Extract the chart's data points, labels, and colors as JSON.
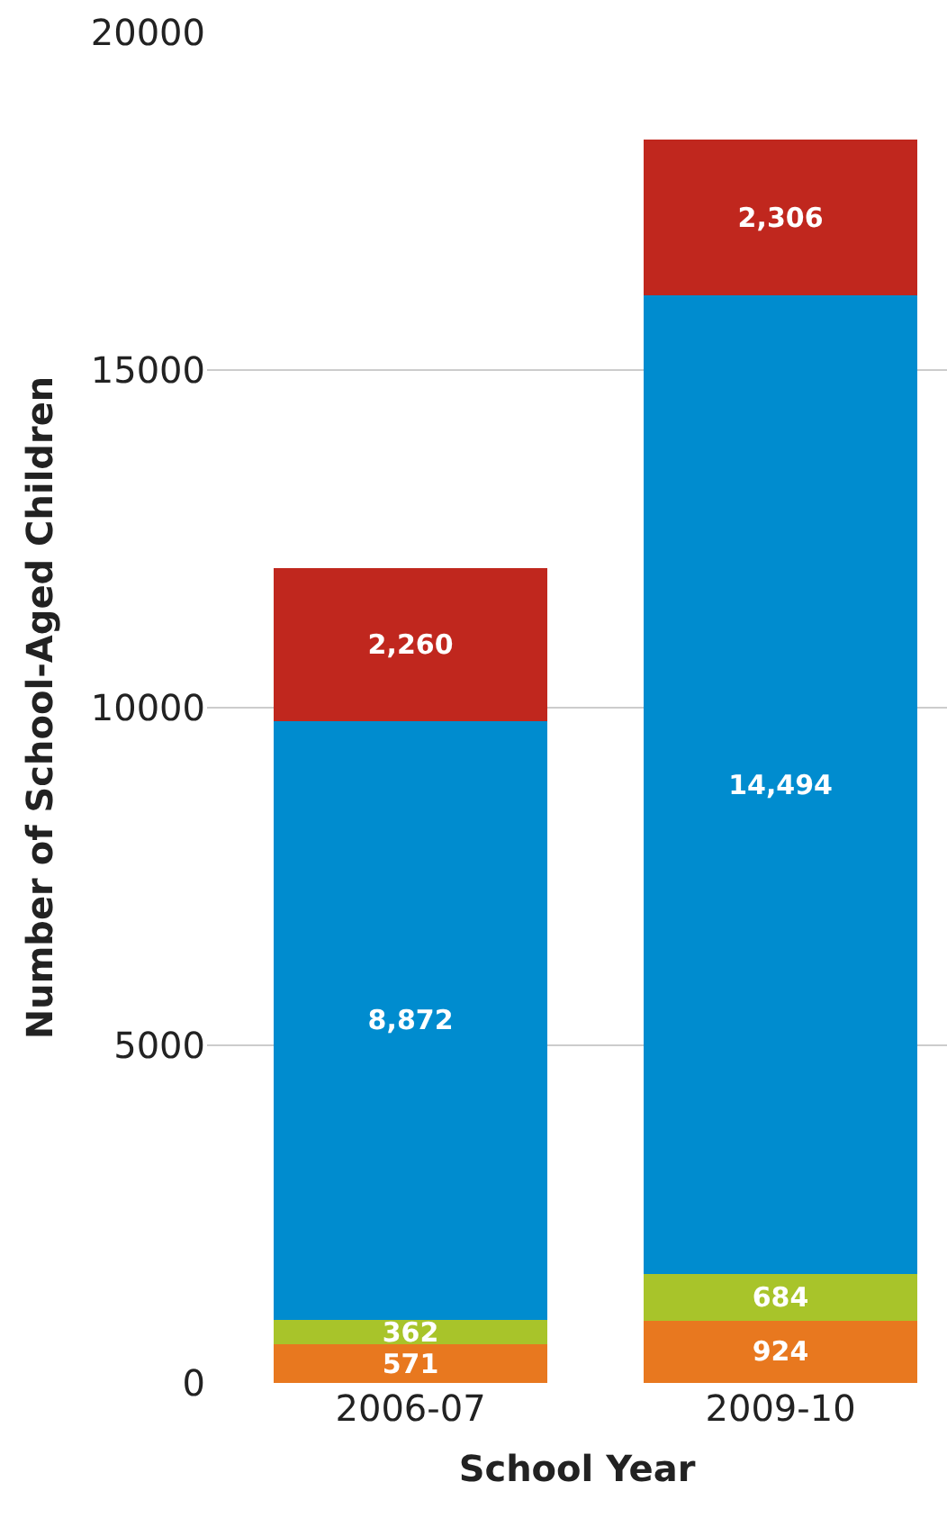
{
  "chart_data": {
    "type": "bar",
    "stacked": true,
    "xlabel": "School Year",
    "ylabel": "Number of School-Aged Children",
    "categories": [
      "2006-07",
      "2009-10"
    ],
    "series": [
      {
        "color": "#e8781f",
        "values": [
          571,
          924
        ],
        "value_labels": [
          "571",
          "924"
        ]
      },
      {
        "color": "#a8c42a",
        "values": [
          362,
          684
        ],
        "value_labels": [
          "362",
          "684"
        ]
      },
      {
        "color": "#008ccf",
        "values": [
          8872,
          14494
        ],
        "value_labels": [
          "8,872",
          "14,494"
        ]
      },
      {
        "color": "#c0271e",
        "values": [
          2260,
          2306
        ],
        "value_labels": [
          "2,260",
          "2,306"
        ]
      }
    ],
    "ylim": [
      0,
      20000
    ],
    "yticks": [
      0,
      5000,
      10000,
      15000,
      20000
    ],
    "grid": "y"
  }
}
